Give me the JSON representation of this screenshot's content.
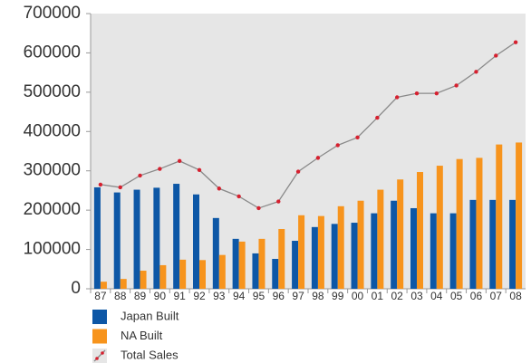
{
  "chart_data": {
    "type": "bar",
    "categories": [
      "87",
      "88",
      "89",
      "90",
      "91",
      "92",
      "93",
      "94",
      "95",
      "96",
      "97",
      "98",
      "99",
      "00",
      "01",
      "02",
      "03",
      "04",
      "05",
      "06",
      "07",
      "08"
    ],
    "series": [
      {
        "name": "Japan Built",
        "type": "bar",
        "color": "#0d57a6",
        "values": [
          258000,
          245000,
          252000,
          257000,
          267000,
          240000,
          180000,
          127000,
          90000,
          76000,
          122000,
          157000,
          165000,
          168000,
          192000,
          224000,
          205000,
          192000,
          192000,
          226000,
          226000,
          226000
        ]
      },
      {
        "name": "NA Built",
        "type": "bar",
        "color": "#f7941d",
        "values": [
          18000,
          25000,
          46000,
          60000,
          74000,
          73000,
          86000,
          120000,
          127000,
          152000,
          187000,
          185000,
          210000,
          224000,
          252000,
          278000,
          297000,
          313000,
          330000,
          333000,
          367000,
          372000
        ]
      },
      {
        "name": "Total Sales",
        "type": "line",
        "color": "#8a8a8a",
        "marker_color": "#d6202f",
        "values": [
          265000,
          258000,
          288000,
          305000,
          325000,
          302000,
          255000,
          235000,
          205000,
          222000,
          298000,
          333000,
          365000,
          385000,
          435000,
          487000,
          497000,
          497000,
          517000,
          552000,
          593000,
          627000
        ]
      }
    ],
    "ylim": [
      0,
      700000
    ],
    "yticks": [
      0,
      100000,
      200000,
      300000,
      400000,
      500000,
      600000,
      700000
    ],
    "legend": "bottom-left"
  }
}
